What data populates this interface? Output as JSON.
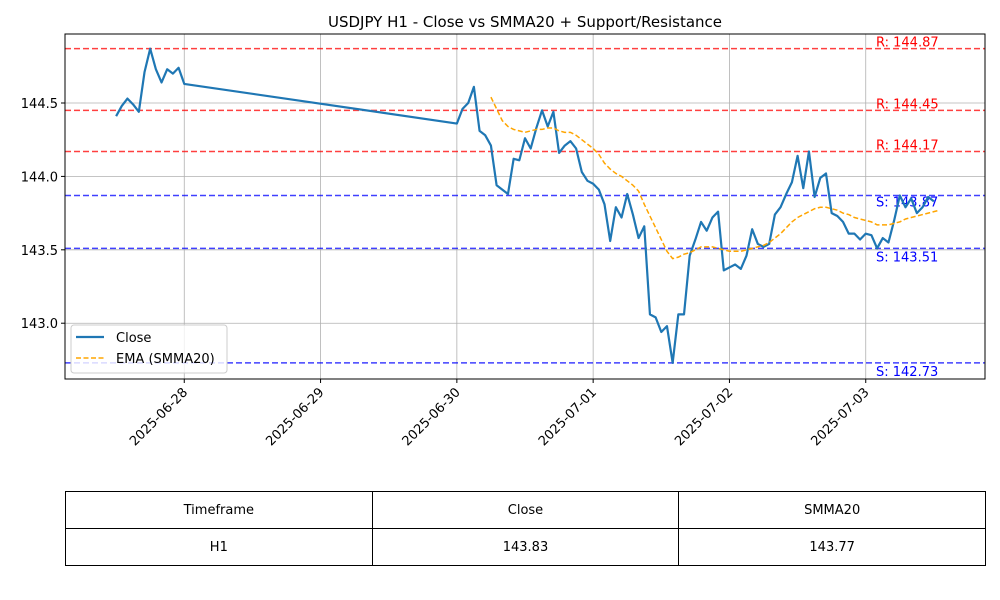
{
  "chart_data": {
    "type": "line",
    "title": "USDJPY H1 - Close vs SMMA20 + Support/Resistance",
    "xlabel": "",
    "ylabel": "",
    "ylim": [
      142.62,
      144.97
    ],
    "xlim": [
      "2025-06-27 03:00",
      "2025-07-03 21:00"
    ],
    "x_ticks": [
      "2025-06-28",
      "2025-06-29",
      "2025-06-30",
      "2025-07-01",
      "2025-07-02",
      "2025-07-03"
    ],
    "y_ticks": [
      "143.0",
      "143.5",
      "144.0",
      "144.5"
    ],
    "grid": true,
    "legend_position": "lower-left",
    "series": [
      {
        "name": "Close",
        "color": "#1f77b4",
        "style": "solid",
        "points": [
          [
            "2025-06-27 12:00",
            144.41
          ],
          [
            "2025-06-27 13:00",
            144.48
          ],
          [
            "2025-06-27 14:00",
            144.53
          ],
          [
            "2025-06-27 15:00",
            144.49
          ],
          [
            "2025-06-27 16:00",
            144.44
          ],
          [
            "2025-06-27 17:00",
            144.71
          ],
          [
            "2025-06-27 18:00",
            144.87
          ],
          [
            "2025-06-27 19:00",
            144.73
          ],
          [
            "2025-06-27 20:00",
            144.64
          ],
          [
            "2025-06-27 21:00",
            144.73
          ],
          [
            "2025-06-27 22:00",
            144.7
          ],
          [
            "2025-06-27 23:00",
            144.74
          ],
          [
            "2025-06-28 00:00",
            144.63
          ],
          [
            "2025-06-30 00:00",
            144.36
          ],
          [
            "2025-06-30 01:00",
            144.46
          ],
          [
            "2025-06-30 02:00",
            144.5
          ],
          [
            "2025-06-30 03:00",
            144.61
          ],
          [
            "2025-06-30 04:00",
            144.31
          ],
          [
            "2025-06-30 05:00",
            144.28
          ],
          [
            "2025-06-30 06:00",
            144.21
          ],
          [
            "2025-06-30 07:00",
            143.94
          ],
          [
            "2025-06-30 08:00",
            143.91
          ],
          [
            "2025-06-30 09:00",
            143.88
          ],
          [
            "2025-06-30 10:00",
            144.12
          ],
          [
            "2025-06-30 11:00",
            144.11
          ],
          [
            "2025-06-30 12:00",
            144.26
          ],
          [
            "2025-06-30 13:00",
            144.19
          ],
          [
            "2025-06-30 14:00",
            144.33
          ],
          [
            "2025-06-30 15:00",
            144.45
          ],
          [
            "2025-06-30 16:00",
            144.34
          ],
          [
            "2025-06-30 17:00",
            144.44
          ],
          [
            "2025-06-30 18:00",
            144.16
          ],
          [
            "2025-06-30 19:00",
            144.21
          ],
          [
            "2025-06-30 20:00",
            144.24
          ],
          [
            "2025-06-30 21:00",
            144.19
          ],
          [
            "2025-06-30 22:00",
            144.03
          ],
          [
            "2025-06-30 23:00",
            143.97
          ],
          [
            "2025-07-01 00:00",
            143.95
          ],
          [
            "2025-07-01 01:00",
            143.91
          ],
          [
            "2025-07-01 02:00",
            143.81
          ],
          [
            "2025-07-01 03:00",
            143.56
          ],
          [
            "2025-07-01 04:00",
            143.79
          ],
          [
            "2025-07-01 05:00",
            143.72
          ],
          [
            "2025-07-01 06:00",
            143.88
          ],
          [
            "2025-07-01 07:00",
            143.74
          ],
          [
            "2025-07-01 08:00",
            143.58
          ],
          [
            "2025-07-01 09:00",
            143.66
          ],
          [
            "2025-07-01 10:00",
            143.06
          ],
          [
            "2025-07-01 11:00",
            143.04
          ],
          [
            "2025-07-01 12:00",
            142.94
          ],
          [
            "2025-07-01 13:00",
            142.98
          ],
          [
            "2025-07-01 14:00",
            142.73
          ],
          [
            "2025-07-01 15:00",
            143.06
          ],
          [
            "2025-07-01 16:00",
            143.06
          ],
          [
            "2025-07-01 17:00",
            143.46
          ],
          [
            "2025-07-01 18:00",
            143.57
          ],
          [
            "2025-07-01 19:00",
            143.69
          ],
          [
            "2025-07-01 20:00",
            143.63
          ],
          [
            "2025-07-01 21:00",
            143.72
          ],
          [
            "2025-07-01 22:00",
            143.76
          ],
          [
            "2025-07-01 23:00",
            143.36
          ],
          [
            "2025-07-02 00:00",
            143.38
          ],
          [
            "2025-07-02 01:00",
            143.4
          ],
          [
            "2025-07-02 02:00",
            143.37
          ],
          [
            "2025-07-02 03:00",
            143.46
          ],
          [
            "2025-07-02 04:00",
            143.64
          ],
          [
            "2025-07-02 05:00",
            143.54
          ],
          [
            "2025-07-02 06:00",
            143.52
          ],
          [
            "2025-07-02 07:00",
            143.54
          ],
          [
            "2025-07-02 08:00",
            143.74
          ],
          [
            "2025-07-02 09:00",
            143.79
          ],
          [
            "2025-07-02 10:00",
            143.88
          ],
          [
            "2025-07-02 11:00",
            143.96
          ],
          [
            "2025-07-02 12:00",
            144.14
          ],
          [
            "2025-07-02 13:00",
            143.92
          ],
          [
            "2025-07-02 14:00",
            144.17
          ],
          [
            "2025-07-02 15:00",
            143.86
          ],
          [
            "2025-07-02 16:00",
            143.99
          ],
          [
            "2025-07-02 17:00",
            144.02
          ],
          [
            "2025-07-02 18:00",
            143.75
          ],
          [
            "2025-07-02 19:00",
            143.73
          ],
          [
            "2025-07-02 20:00",
            143.69
          ],
          [
            "2025-07-02 21:00",
            143.61
          ],
          [
            "2025-07-02 22:00",
            143.61
          ],
          [
            "2025-07-02 23:00",
            143.57
          ],
          [
            "2025-07-03 00:00",
            143.61
          ],
          [
            "2025-07-03 01:00",
            143.6
          ],
          [
            "2025-07-03 02:00",
            143.51
          ],
          [
            "2025-07-03 03:00",
            143.58
          ],
          [
            "2025-07-03 04:00",
            143.55
          ],
          [
            "2025-07-03 05:00",
            143.7
          ],
          [
            "2025-07-03 06:00",
            143.87
          ],
          [
            "2025-07-03 07:00",
            143.79
          ],
          [
            "2025-07-03 08:00",
            143.85
          ],
          [
            "2025-07-03 09:00",
            143.75
          ],
          [
            "2025-07-03 10:00",
            143.79
          ],
          [
            "2025-07-03 11:00",
            143.86
          ],
          [
            "2025-07-03 12:00",
            143.83
          ]
        ]
      },
      {
        "name": "EMA (SMMA20)",
        "color": "#ffa500",
        "style": "dashed",
        "points": [
          [
            "2025-06-30 06:00",
            144.54
          ],
          [
            "2025-06-30 07:00",
            144.46
          ],
          [
            "2025-06-30 08:00",
            144.38
          ],
          [
            "2025-06-30 09:00",
            144.34
          ],
          [
            "2025-06-30 10:00",
            144.32
          ],
          [
            "2025-06-30 11:00",
            144.31
          ],
          [
            "2025-06-30 12:00",
            144.3
          ],
          [
            "2025-06-30 13:00",
            144.31
          ],
          [
            "2025-06-30 14:00",
            144.32
          ],
          [
            "2025-06-30 15:00",
            144.32
          ],
          [
            "2025-06-30 16:00",
            144.33
          ],
          [
            "2025-06-30 17:00",
            144.33
          ],
          [
            "2025-06-30 18:00",
            144.31
          ],
          [
            "2025-06-30 19:00",
            144.3
          ],
          [
            "2025-06-30 20:00",
            144.3
          ],
          [
            "2025-06-30 21:00",
            144.28
          ],
          [
            "2025-06-30 22:00",
            144.25
          ],
          [
            "2025-06-30 23:00",
            144.22
          ],
          [
            "2025-07-01 00:00",
            144.19
          ],
          [
            "2025-07-01 01:00",
            144.15
          ],
          [
            "2025-07-01 02:00",
            144.09
          ],
          [
            "2025-07-01 03:00",
            144.05
          ],
          [
            "2025-07-01 04:00",
            144.02
          ],
          [
            "2025-07-01 05:00",
            144.0
          ],
          [
            "2025-07-01 06:00",
            143.97
          ],
          [
            "2025-07-01 07:00",
            143.94
          ],
          [
            "2025-07-01 08:00",
            143.9
          ],
          [
            "2025-07-01 09:00",
            143.81
          ],
          [
            "2025-07-01 10:00",
            143.73
          ],
          [
            "2025-07-01 11:00",
            143.65
          ],
          [
            "2025-07-01 12:00",
            143.57
          ],
          [
            "2025-07-01 13:00",
            143.49
          ],
          [
            "2025-07-01 14:00",
            143.44
          ],
          [
            "2025-07-01 15:00",
            143.45
          ],
          [
            "2025-07-01 16:00",
            143.47
          ],
          [
            "2025-07-01 17:00",
            143.48
          ],
          [
            "2025-07-01 18:00",
            143.5
          ],
          [
            "2025-07-01 19:00",
            143.52
          ],
          [
            "2025-07-01 20:00",
            143.52
          ],
          [
            "2025-07-01 21:00",
            143.52
          ],
          [
            "2025-07-01 22:00",
            143.51
          ],
          [
            "2025-07-01 23:00",
            143.5
          ],
          [
            "2025-07-02 00:00",
            143.49
          ],
          [
            "2025-07-02 01:00",
            143.49
          ],
          [
            "2025-07-02 02:00",
            143.49
          ],
          [
            "2025-07-02 03:00",
            143.5
          ],
          [
            "2025-07-02 04:00",
            143.51
          ],
          [
            "2025-07-02 05:00",
            143.52
          ],
          [
            "2025-07-02 06:00",
            143.53
          ],
          [
            "2025-07-02 07:00",
            143.55
          ],
          [
            "2025-07-02 08:00",
            143.58
          ],
          [
            "2025-07-02 09:00",
            143.61
          ],
          [
            "2025-07-02 10:00",
            143.65
          ],
          [
            "2025-07-02 11:00",
            143.69
          ],
          [
            "2025-07-02 12:00",
            143.72
          ],
          [
            "2025-07-02 13:00",
            143.74
          ],
          [
            "2025-07-02 14:00",
            143.76
          ],
          [
            "2025-07-02 15:00",
            143.78
          ],
          [
            "2025-07-02 16:00",
            143.79
          ],
          [
            "2025-07-02 17:00",
            143.79
          ],
          [
            "2025-07-02 18:00",
            143.78
          ],
          [
            "2025-07-02 19:00",
            143.77
          ],
          [
            "2025-07-02 20:00",
            143.75
          ],
          [
            "2025-07-02 21:00",
            143.74
          ],
          [
            "2025-07-02 22:00",
            143.72
          ],
          [
            "2025-07-02 23:00",
            143.71
          ],
          [
            "2025-07-03 00:00",
            143.7
          ],
          [
            "2025-07-03 01:00",
            143.69
          ],
          [
            "2025-07-03 02:00",
            143.67
          ],
          [
            "2025-07-03 03:00",
            143.67
          ],
          [
            "2025-07-03 04:00",
            143.67
          ],
          [
            "2025-07-03 05:00",
            143.68
          ],
          [
            "2025-07-03 06:00",
            143.69
          ],
          [
            "2025-07-03 07:00",
            143.71
          ],
          [
            "2025-07-03 08:00",
            143.72
          ],
          [
            "2025-07-03 09:00",
            143.73
          ],
          [
            "2025-07-03 10:00",
            143.74
          ],
          [
            "2025-07-03 11:00",
            143.75
          ],
          [
            "2025-07-03 12:00",
            143.76
          ],
          [
            "2025-07-03 13:00",
            143.77
          ]
        ]
      }
    ],
    "levels": [
      {
        "kind": "resistance",
        "value": 144.87,
        "label": "R: 144.87",
        "color": "#ff0000"
      },
      {
        "kind": "resistance",
        "value": 144.45,
        "label": "R: 144.45",
        "color": "#ff0000"
      },
      {
        "kind": "resistance",
        "value": 144.17,
        "label": "R: 144.17",
        "color": "#ff0000"
      },
      {
        "kind": "support",
        "value": 143.87,
        "label": "S: 143.87",
        "color": "#0000ff"
      },
      {
        "kind": "support",
        "value": 143.51,
        "label": "S: 143.51",
        "color": "#0000ff"
      },
      {
        "kind": "support",
        "value": 142.73,
        "label": "S: 142.73",
        "color": "#0000ff"
      }
    ]
  },
  "summary_table": {
    "headers": [
      "Timeframe",
      "Close",
      "SMMA20"
    ],
    "row": [
      "H1",
      "143.83",
      "143.77"
    ]
  }
}
